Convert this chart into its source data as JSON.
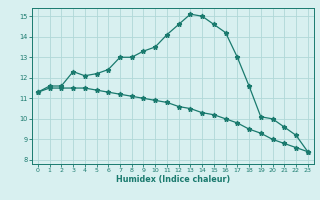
{
  "xlabel": "Humidex (Indice chaleur)",
  "x": [
    0,
    1,
    2,
    3,
    4,
    5,
    6,
    7,
    8,
    9,
    10,
    11,
    12,
    13,
    14,
    15,
    16,
    17,
    18,
    19,
    20,
    21,
    22,
    23
  ],
  "line1": [
    11.3,
    11.6,
    11.6,
    12.3,
    12.1,
    12.2,
    12.4,
    13.0,
    13.0,
    13.3,
    13.5,
    14.1,
    14.6,
    15.1,
    15.0,
    14.6,
    14.2,
    13.0,
    11.6,
    10.1,
    10.0,
    9.6,
    9.2,
    8.4
  ],
  "line2": [
    11.3,
    11.5,
    11.5,
    11.5,
    11.5,
    11.4,
    11.3,
    11.2,
    11.1,
    11.0,
    10.9,
    10.8,
    10.6,
    10.5,
    10.3,
    10.2,
    10.0,
    9.8,
    9.5,
    9.3,
    9.0,
    8.8,
    8.6,
    8.4
  ],
  "line_color": "#1a7a6e",
  "bg_color": "#d8f0f0",
  "grid_color": "#b0d8d8",
  "ylim": [
    7.8,
    15.4
  ],
  "yticks": [
    8,
    9,
    10,
    11,
    12,
    13,
    14,
    15
  ],
  "xticks": [
    0,
    1,
    2,
    3,
    4,
    5,
    6,
    7,
    8,
    9,
    10,
    11,
    12,
    13,
    14,
    15,
    16,
    17,
    18,
    19,
    20,
    21,
    22,
    23
  ],
  "marker": "*",
  "markersize": 3.5,
  "linewidth": 0.9
}
